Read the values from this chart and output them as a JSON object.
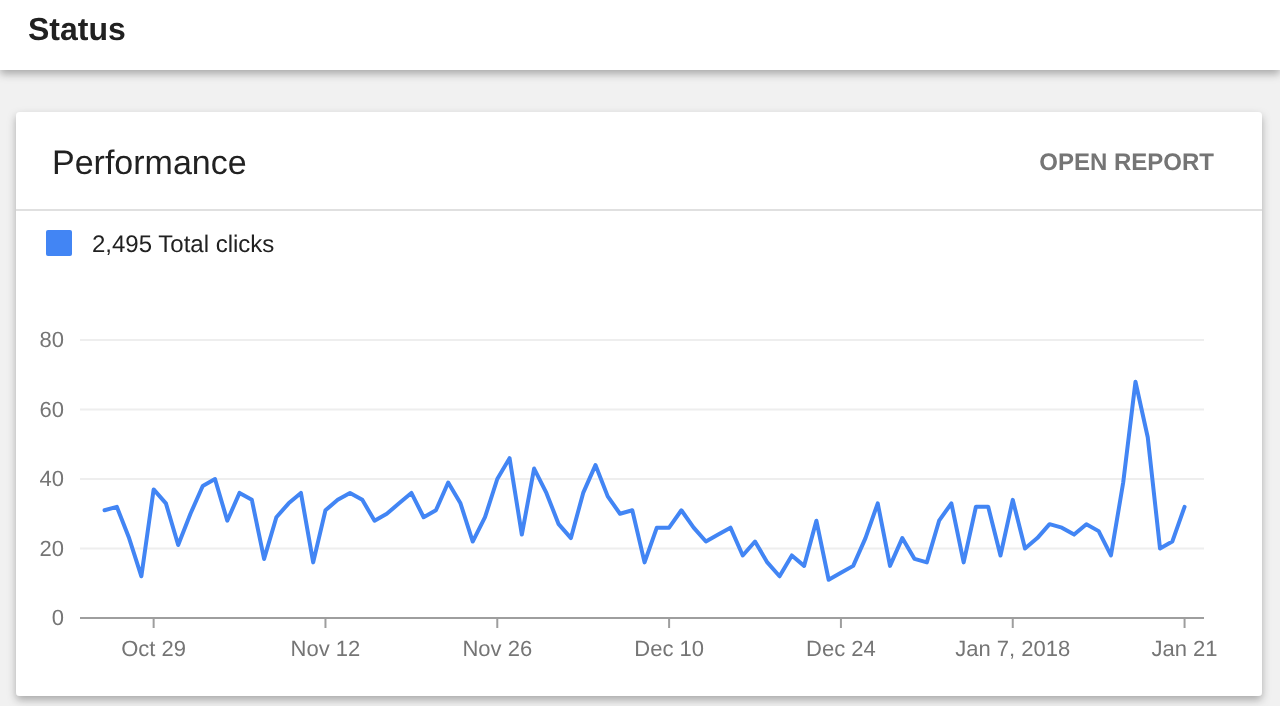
{
  "chart_data": {
    "type": "line",
    "title": "Performance",
    "annotations": [
      "Status",
      "OPEN REPORT"
    ],
    "x": [
      "2017-10-25",
      "2017-10-26",
      "2017-10-27",
      "2017-10-28",
      "2017-10-29",
      "2017-10-30",
      "2017-10-31",
      "2017-11-01",
      "2017-11-02",
      "2017-11-03",
      "2017-11-04",
      "2017-11-05",
      "2017-11-06",
      "2017-11-07",
      "2017-11-08",
      "2017-11-09",
      "2017-11-10",
      "2017-11-11",
      "2017-11-12",
      "2017-11-13",
      "2017-11-14",
      "2017-11-15",
      "2017-11-16",
      "2017-11-17",
      "2017-11-18",
      "2017-11-19",
      "2017-11-20",
      "2017-11-21",
      "2017-11-22",
      "2017-11-23",
      "2017-11-24",
      "2017-11-25",
      "2017-11-26",
      "2017-11-27",
      "2017-11-28",
      "2017-11-29",
      "2017-11-30",
      "2017-12-01",
      "2017-12-02",
      "2017-12-03",
      "2017-12-04",
      "2017-12-05",
      "2017-12-06",
      "2017-12-07",
      "2017-12-08",
      "2017-12-09",
      "2017-12-10",
      "2017-12-11",
      "2017-12-12",
      "2017-12-13",
      "2017-12-14",
      "2017-12-15",
      "2017-12-16",
      "2017-12-17",
      "2017-12-18",
      "2017-12-19",
      "2017-12-20",
      "2017-12-21",
      "2017-12-22",
      "2017-12-23",
      "2017-12-24",
      "2017-12-25",
      "2017-12-26",
      "2017-12-27",
      "2017-12-28",
      "2017-12-29",
      "2017-12-30",
      "2017-12-31",
      "2018-01-01",
      "2018-01-02",
      "2018-01-03",
      "2018-01-04",
      "2018-01-05",
      "2018-01-06",
      "2018-01-07",
      "2018-01-08",
      "2018-01-09",
      "2018-01-10",
      "2018-01-11",
      "2018-01-12",
      "2018-01-13",
      "2018-01-14",
      "2018-01-15",
      "2018-01-16",
      "2018-01-17",
      "2018-01-18",
      "2018-01-19",
      "2018-01-20",
      "2018-01-21"
    ],
    "series": [
      {
        "name": "2,495 Total clicks",
        "color": "#4285f4",
        "values": [
          31,
          32,
          23,
          12,
          37,
          33,
          21,
          30,
          38,
          40,
          28,
          36,
          34,
          17,
          29,
          33,
          36,
          16,
          31,
          34,
          36,
          34,
          28,
          30,
          33,
          36,
          29,
          31,
          39,
          33,
          22,
          29,
          40,
          46,
          24,
          43,
          36,
          27,
          23,
          36,
          44,
          35,
          30,
          31,
          16,
          26,
          26,
          31,
          26,
          22,
          24,
          26,
          18,
          22,
          16,
          12,
          18,
          15,
          28,
          11,
          13,
          15,
          23,
          33,
          15,
          23,
          17,
          16,
          28,
          33,
          16,
          32,
          32,
          18,
          34,
          20,
          23,
          27,
          26,
          24,
          27,
          25,
          18,
          39,
          68,
          52,
          20,
          22,
          32
        ]
      }
    ],
    "xlim": [
      "2017-10-23",
      "2018-01-22T14:00"
    ],
    "xticks": [
      {
        "value": "2017-10-29",
        "label": "Oct 29"
      },
      {
        "value": "2017-11-12",
        "label": "Nov 12"
      },
      {
        "value": "2017-11-26",
        "label": "Nov 26"
      },
      {
        "value": "2017-12-10",
        "label": "Dec 10"
      },
      {
        "value": "2017-12-24",
        "label": "Dec 24"
      },
      {
        "value": "2018-01-07",
        "label": "Jan 7, 2018"
      },
      {
        "value": "2018-01-21",
        "label": "Jan 21"
      }
    ],
    "ylim": [
      0,
      80
    ],
    "yticks": [
      0,
      20,
      40,
      60,
      80
    ],
    "grid": "y",
    "legend": "top left",
    "marker": "none",
    "line_style": "solid"
  }
}
